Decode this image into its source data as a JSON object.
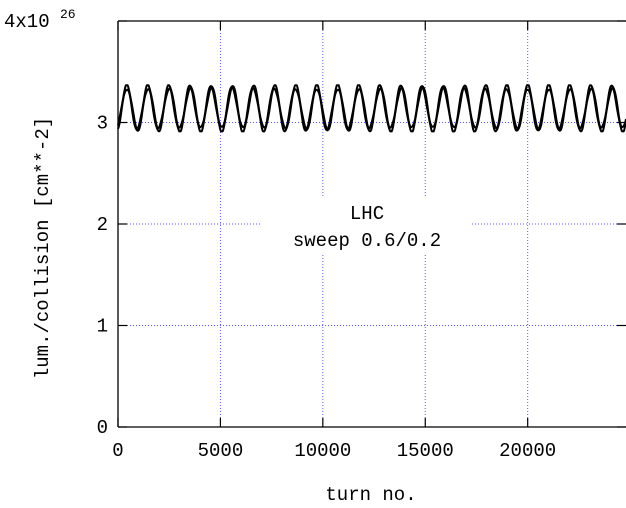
{
  "chart_data": {
    "type": "line",
    "xlabel": "turn no.",
    "ylabel": "lum./collision [cm**-2]",
    "xlim": [
      0,
      24800
    ],
    "ylim": [
      0,
      4e+26
    ],
    "x_ticks": [
      0,
      5000,
      10000,
      15000,
      20000
    ],
    "x_tick_labels": [
      "0",
      "5000",
      "10000",
      "15000",
      "20000"
    ],
    "y_ticks": [
      0,
      1e+26,
      2e+26,
      3e+26,
      4e+26
    ],
    "y_tick_labels": [
      "0",
      "1",
      "2",
      "3",
      "4x10"
    ],
    "y_top_exponent": "26",
    "grid": true,
    "annotation": [
      "LHC",
      "sweep 0.6/0.2"
    ],
    "series": [
      {
        "line_color": "#000000",
        "oscillation": {
          "x_start": 0,
          "x_end": 24800,
          "period": 1030,
          "min": 2.93e+26,
          "max": 3.35e+26,
          "band_width": 3.5e+24
        }
      }
    ]
  }
}
